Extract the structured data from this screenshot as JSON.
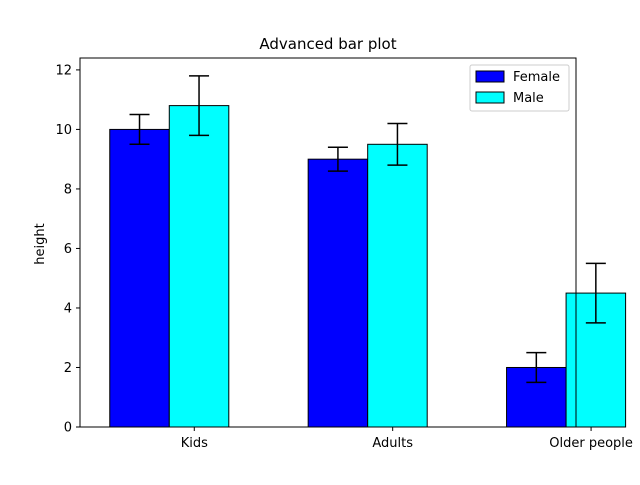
{
  "chart_data": {
    "type": "bar",
    "title": "Advanced bar plot",
    "xlabel": "",
    "ylabel": "height",
    "categories": [
      "Kids",
      "Adults",
      "Older people"
    ],
    "series": [
      {
        "name": "Female",
        "values": [
          10.0,
          9.0,
          2.0
        ],
        "errors": [
          0.5,
          0.4,
          0.5
        ],
        "color": "#0000ff"
      },
      {
        "name": "Male",
        "values": [
          10.8,
          9.5,
          4.5
        ],
        "errors": [
          1.0,
          0.7,
          1.0
        ],
        "color": "#00ffff"
      }
    ],
    "ylim": [
      0,
      12.4
    ],
    "yticks": [
      "0",
      "2",
      "4",
      "6",
      "8",
      "10",
      "12"
    ],
    "grid": false,
    "legend_position": "top-right",
    "bar_edge_color": "#000000",
    "error_bar_color": "#000000"
  }
}
